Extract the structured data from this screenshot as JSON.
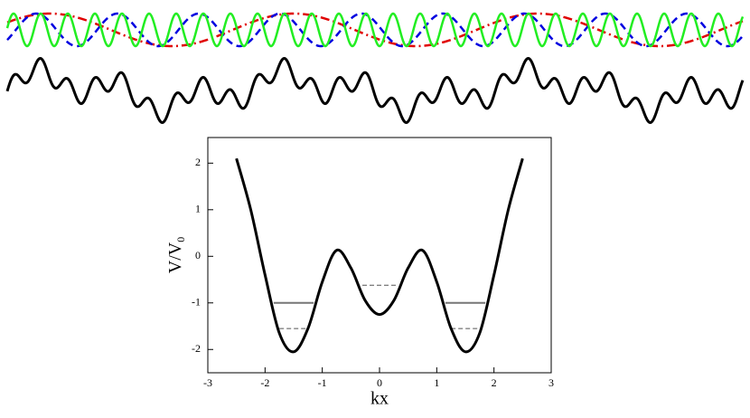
{
  "chart_data": {
    "type": "line",
    "x_label": "kx",
    "y_label": "V/V",
    "y_label_sub": "0",
    "x": [
      -2.5,
      -2.25,
      -2.0,
      -1.75,
      -1.5,
      -1.25,
      -1.0,
      -0.75,
      -0.5,
      -0.25,
      0,
      0.25,
      0.5,
      0.75,
      1.0,
      1.25,
      1.5,
      1.75,
      2.0,
      2.25,
      2.5
    ],
    "series": [
      {
        "color": "#000000",
        "values": [
          2.1,
          1.0,
          -0.4,
          -1.65,
          -2.05,
          -1.55,
          -0.55,
          0.13,
          -0.25,
          -0.95,
          -1.25,
          -0.95,
          -0.25,
          0.13,
          -0.55,
          -1.55,
          -2.05,
          -1.65,
          -0.4,
          1.0,
          2.1
        ]
      }
    ],
    "levels": [
      {
        "y": -1,
        "x": [
          -1.85,
          -1.15
        ],
        "style": "solid"
      },
      {
        "y": -1,
        "x": [
          1.15,
          1.85
        ],
        "style": "solid"
      },
      {
        "y": -1.55,
        "x": [
          -1.75,
          -1.25
        ],
        "style": "dashed"
      },
      {
        "y": -1.55,
        "x": [
          1.25,
          1.75
        ],
        "style": "dashed"
      },
      {
        "y": -0.62,
        "x": [
          -0.3,
          0.3
        ],
        "style": "dashed"
      }
    ],
    "xlim": [
      -3,
      3
    ],
    "xticks": [
      -3,
      -2,
      -1,
      0,
      1,
      2,
      3
    ],
    "ylim": [
      -2.5,
      2.55
    ],
    "yticks": [
      -2,
      -1,
      0,
      1,
      2
    ]
  }
}
